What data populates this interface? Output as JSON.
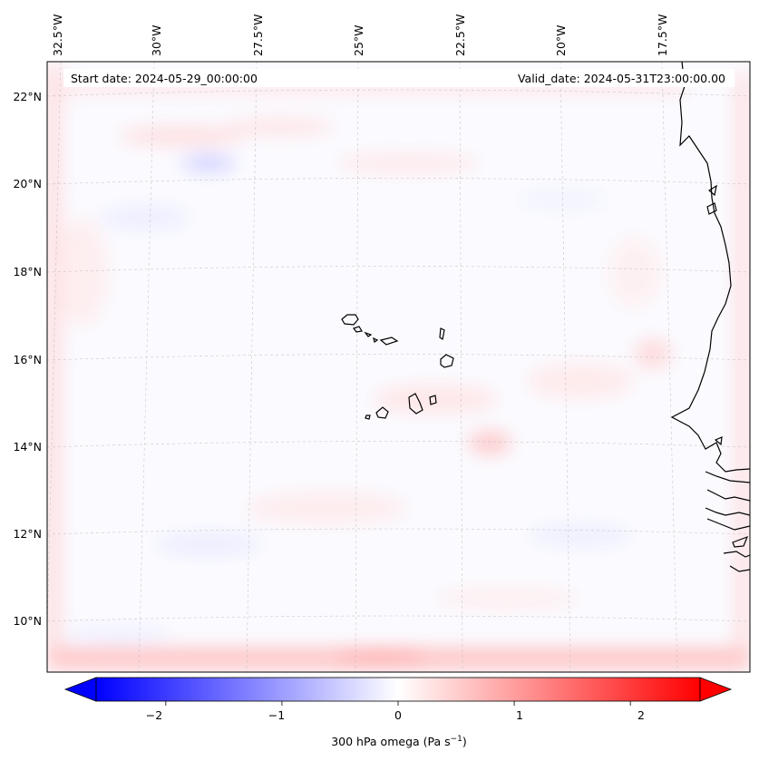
{
  "map": {
    "start_date_label": "Start date: 2024-05-29_00:00:00",
    "valid_date_label": "Valid_date: 2024-05-31T23:00:00.00",
    "lon_labels": [
      "32.5°W",
      "30°W",
      "27.5°W",
      "25°W",
      "22.5°W",
      "20°W",
      "17.5°W"
    ],
    "lat_labels": [
      "22°N",
      "20°N",
      "18°N",
      "16°N",
      "14°N",
      "12°N",
      "10°N"
    ]
  },
  "colorbar": {
    "label": "300 hPa omega (Pa s",
    "label_superscript": "−1",
    "label_close": ")",
    "ticks": [
      "−2",
      "−1",
      "0",
      "1",
      "2"
    ],
    "range": [
      -2.6,
      2.6
    ],
    "colormap": "bwr",
    "extend": "both"
  },
  "colors": {
    "negative": "#0000ff",
    "zero": "#ffffff",
    "positive": "#ff0000",
    "coastline": "#000000"
  }
}
